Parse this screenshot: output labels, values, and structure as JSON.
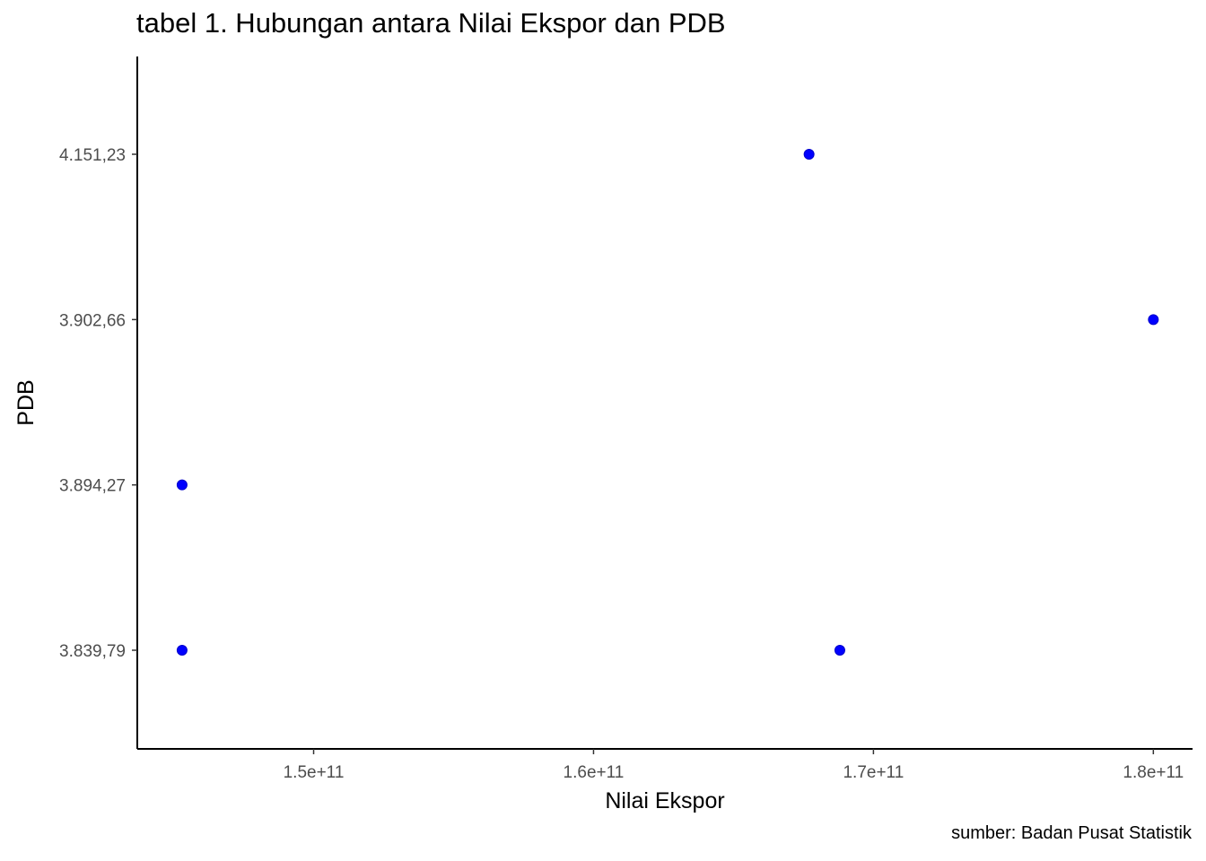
{
  "chart_data": {
    "type": "scatter",
    "title": "tabel 1. Hubungan antara Nilai Ekspor dan PDB",
    "xlabel": "Nilai Ekspor",
    "ylabel": "PDB",
    "caption": "sumber: Badan Pusat Statistik",
    "x_ticks": [
      150000000000,
      160000000000,
      170000000000,
      180000000000
    ],
    "x_tick_labels": [
      "1.5e+11",
      "1.6e+11",
      "1.7e+11",
      "1.8e+11"
    ],
    "y_categories": [
      "3.839,79",
      "3.894,27",
      "3.902,66",
      "4.151,23"
    ],
    "xlim": [
      143700000000,
      181400000000
    ],
    "points": [
      {
        "x": 145300000000,
        "y": "3.894,27"
      },
      {
        "x": 145300000000,
        "y": "3.839,79"
      },
      {
        "x": 167700000000,
        "y": "4.151,23"
      },
      {
        "x": 168800000000,
        "y": "3.839,79"
      },
      {
        "x": 180000000000,
        "y": "3.902,66"
      }
    ],
    "point_color": "#0000ff",
    "grid": false,
    "legend": "none"
  }
}
